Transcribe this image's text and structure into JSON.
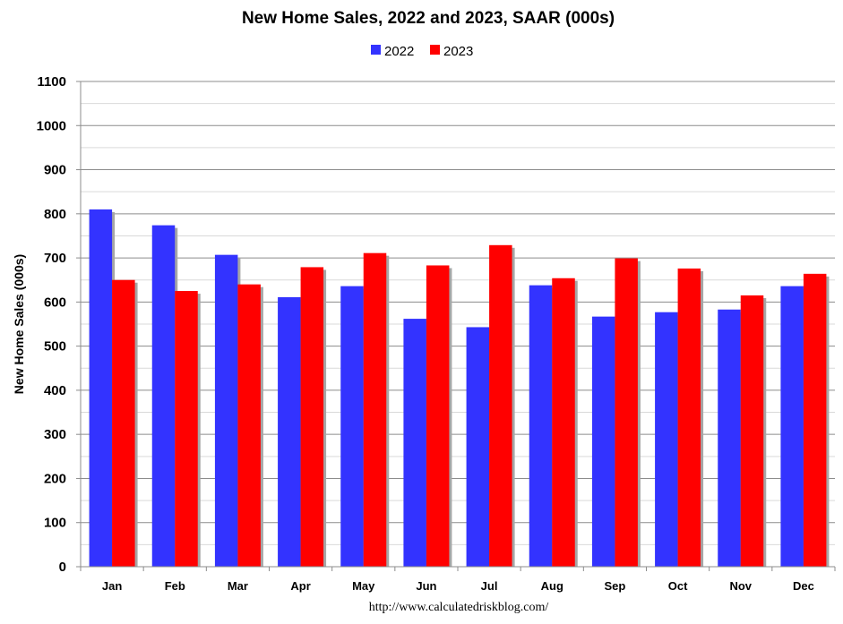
{
  "chart_data": {
    "type": "bar",
    "title": "New Home Sales,  2022 and 2023, SAAR (000s)",
    "ylabel": "New Home Sales (000s)",
    "xlabel": "",
    "source": "http://www.calculatedriskblog.com/",
    "ylim": [
      0,
      1100
    ],
    "yticks": [
      0,
      100,
      200,
      300,
      400,
      500,
      600,
      700,
      800,
      900,
      1000,
      1100
    ],
    "grid": true,
    "legend_position": "top-center",
    "categories": [
      "Jan",
      "Feb",
      "Mar",
      "Apr",
      "May",
      "Jun",
      "Jul",
      "Aug",
      "Sep",
      "Oct",
      "Nov",
      "Dec"
    ],
    "series": [
      {
        "name": "2022",
        "color": "#3333ff",
        "values": [
          810,
          774,
          707,
          611,
          636,
          562,
          543,
          638,
          567,
          577,
          583,
          636
        ]
      },
      {
        "name": "2023",
        "color": "#ff0000",
        "values": [
          650,
          625,
          640,
          679,
          711,
          683,
          729,
          654,
          699,
          676,
          615,
          664
        ]
      }
    ]
  }
}
